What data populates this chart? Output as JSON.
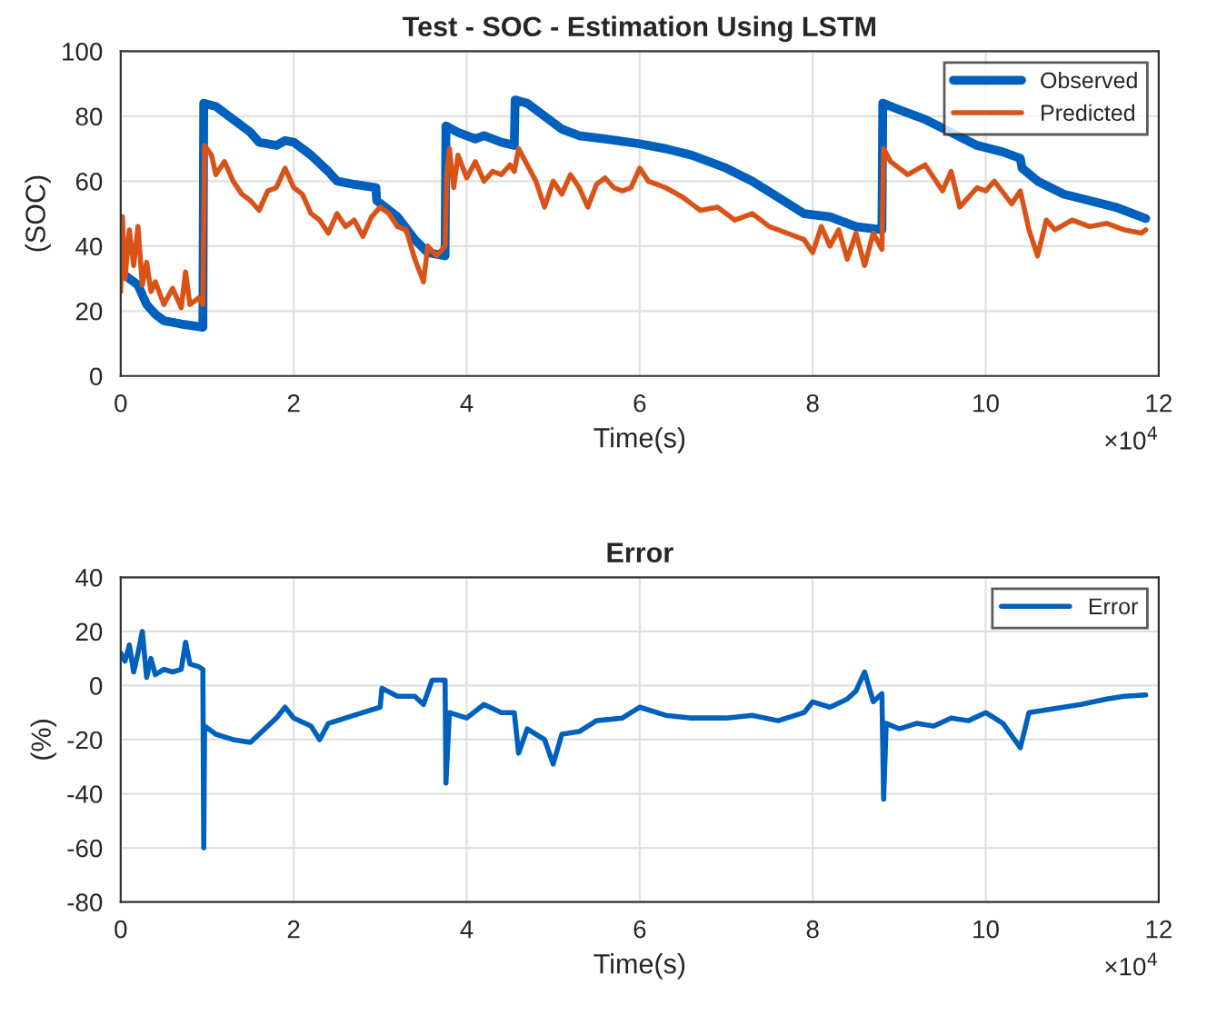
{
  "chart_data": [
    {
      "type": "line",
      "title": "Test - SOC - Estimation Using LSTM",
      "xlabel": "Time(s)",
      "ylabel": "(SOC)",
      "annotations": [
        "×10$^{4}$"
      ],
      "xlim": [
        0,
        12
      ],
      "xticks": [
        0,
        2,
        4,
        6,
        8,
        10,
        12
      ],
      "ylim": [
        0,
        100
      ],
      "yticks": [
        0,
        20,
        40,
        60,
        80,
        100
      ],
      "grid": true,
      "legend": "top right",
      "line_style": "solid",
      "marker": "none",
      "series": [
        {
          "name": "Observed",
          "color": "#0060bd",
          "x": [
            0,
            0.1,
            0.2,
            0.3,
            0.4,
            0.5,
            0.7,
            0.95,
            0.96,
            1.1,
            1.3,
            1.5,
            1.6,
            1.8,
            1.9,
            2.0,
            2.2,
            2.4,
            2.5,
            2.7,
            2.95,
            2.96,
            3.2,
            3.4,
            3.55,
            3.75,
            3.76,
            3.9,
            4.1,
            4.2,
            4.4,
            4.55,
            4.56,
            4.7,
            4.9,
            5.1,
            5.3,
            5.6,
            6.0,
            6.3,
            6.6,
            7.0,
            7.3,
            7.6,
            7.9,
            8.2,
            8.5,
            8.8,
            8.81,
            9.0,
            9.3,
            9.6,
            9.9,
            10.2,
            10.4,
            10.42,
            10.6,
            10.9,
            11.2,
            11.5,
            11.85
          ],
          "values": [
            32,
            30,
            28,
            22,
            19,
            17,
            16,
            15,
            84,
            83,
            79,
            75,
            72,
            71,
            72.5,
            72,
            68,
            63,
            60,
            59,
            58,
            54,
            49,
            42,
            38,
            37,
            77,
            75,
            73,
            74,
            72,
            71,
            85,
            84,
            80,
            76,
            74,
            73,
            71.5,
            70,
            68,
            64,
            60,
            55,
            50,
            49,
            46,
            45,
            84,
            82,
            79,
            75,
            71,
            69,
            67,
            64,
            60,
            56,
            54,
            52,
            48.5
          ]
        },
        {
          "name": "Predicted",
          "color": "#d95319",
          "x": [
            0,
            0.02,
            0.05,
            0.1,
            0.15,
            0.2,
            0.25,
            0.3,
            0.35,
            0.4,
            0.5,
            0.6,
            0.7,
            0.75,
            0.8,
            0.9,
            0.95,
            0.97,
            1.05,
            1.1,
            1.2,
            1.3,
            1.4,
            1.5,
            1.6,
            1.7,
            1.8,
            1.9,
            2.0,
            2.1,
            2.2,
            2.3,
            2.4,
            2.5,
            2.6,
            2.7,
            2.8,
            2.9,
            3.0,
            3.1,
            3.2,
            3.3,
            3.4,
            3.5,
            3.55,
            3.65,
            3.75,
            3.77,
            3.8,
            3.85,
            3.9,
            4.0,
            4.1,
            4.2,
            4.3,
            4.4,
            4.5,
            4.55,
            4.6,
            4.7,
            4.8,
            4.9,
            5.0,
            5.1,
            5.2,
            5.3,
            5.4,
            5.5,
            5.6,
            5.7,
            5.8,
            5.9,
            6.0,
            6.1,
            6.3,
            6.5,
            6.7,
            6.9,
            7.1,
            7.3,
            7.5,
            7.7,
            7.9,
            8.0,
            8.1,
            8.2,
            8.3,
            8.4,
            8.5,
            8.6,
            8.7,
            8.8,
            8.82,
            8.9,
            9.1,
            9.3,
            9.5,
            9.6,
            9.7,
            9.9,
            10.0,
            10.1,
            10.3,
            10.4,
            10.5,
            10.6,
            10.7,
            10.8,
            11.0,
            11.2,
            11.4,
            11.6,
            11.8,
            11.85
          ],
          "values": [
            26,
            49,
            30,
            45,
            34,
            46,
            28,
            35,
            26,
            29,
            22,
            27,
            21,
            32,
            22,
            24,
            22,
            71,
            68,
            62,
            66,
            60,
            56,
            54,
            51,
            57,
            58,
            64,
            58,
            56,
            50,
            48,
            44,
            50,
            46,
            48,
            43,
            49,
            52,
            50,
            46,
            45,
            36,
            29,
            40,
            37,
            40,
            62,
            70,
            58,
            68,
            61,
            66,
            60,
            63,
            62,
            65,
            63,
            70,
            65,
            60,
            52,
            60,
            56,
            62,
            58,
            52,
            59,
            61,
            58,
            57,
            58,
            64,
            60,
            58,
            55,
            51,
            52,
            48,
            50,
            46,
            44,
            42,
            38,
            46,
            40,
            45,
            36,
            44,
            34,
            44,
            39,
            70,
            66,
            62,
            65,
            57,
            63,
            52,
            58,
            57,
            60,
            53,
            57,
            45,
            37,
            48,
            45,
            48,
            46,
            47,
            45,
            44,
            45
          ]
        }
      ]
    },
    {
      "type": "line",
      "title": "Error",
      "xlabel": "Time(s)",
      "ylabel": "(%)",
      "annotations": [
        "×10$^{4}$"
      ],
      "xlim": [
        0,
        12
      ],
      "xticks": [
        0,
        2,
        4,
        6,
        8,
        10,
        12
      ],
      "ylim": [
        -80,
        40
      ],
      "yticks": [
        -80,
        -60,
        -40,
        -20,
        0,
        20,
        40
      ],
      "grid": true,
      "legend": "top right",
      "line_style": "solid",
      "marker": "none",
      "series": [
        {
          "name": "Error",
          "color": "#0060bd",
          "x": [
            0,
            0.05,
            0.1,
            0.15,
            0.2,
            0.25,
            0.3,
            0.35,
            0.4,
            0.5,
            0.6,
            0.7,
            0.75,
            0.8,
            0.9,
            0.95,
            0.96,
            0.97,
            1.1,
            1.3,
            1.5,
            1.6,
            1.8,
            1.9,
            2.0,
            2.2,
            2.3,
            2.4,
            2.6,
            2.8,
            3.0,
            3.02,
            3.2,
            3.4,
            3.5,
            3.6,
            3.75,
            3.76,
            3.8,
            4.0,
            4.2,
            4.4,
            4.55,
            4.6,
            4.7,
            4.9,
            5.0,
            5.1,
            5.3,
            5.5,
            5.8,
            6.0,
            6.3,
            6.6,
            7.0,
            7.3,
            7.6,
            7.9,
            8.0,
            8.2,
            8.4,
            8.5,
            8.6,
            8.7,
            8.8,
            8.82,
            8.85,
            9.0,
            9.2,
            9.4,
            9.6,
            9.8,
            10.0,
            10.2,
            10.4,
            10.5,
            10.7,
            10.9,
            11.1,
            11.4,
            11.6,
            11.85
          ],
          "values": [
            12,
            9,
            15,
            5,
            12,
            20,
            3,
            10,
            4,
            6,
            5,
            6,
            16,
            8,
            7,
            6,
            -60,
            -15,
            -18,
            -20,
            -21,
            -18,
            -12,
            -8,
            -12,
            -15,
            -20,
            -14,
            -12,
            -10,
            -8,
            -1,
            -4,
            -4,
            -7,
            2,
            2,
            -36,
            -10,
            -12,
            -7,
            -10,
            -10,
            -25,
            -16,
            -20,
            -29,
            -18,
            -17,
            -13,
            -12,
            -8,
            -11,
            -12,
            -12,
            -11,
            -13,
            -10,
            -6,
            -8,
            -5,
            -2,
            5,
            -6,
            -3,
            -42,
            -14,
            -16,
            -14,
            -15,
            -12,
            -13,
            -10,
            -14,
            -23,
            -10,
            -9,
            -8,
            -7,
            -5,
            -4,
            -3.5
          ]
        }
      ]
    }
  ]
}
